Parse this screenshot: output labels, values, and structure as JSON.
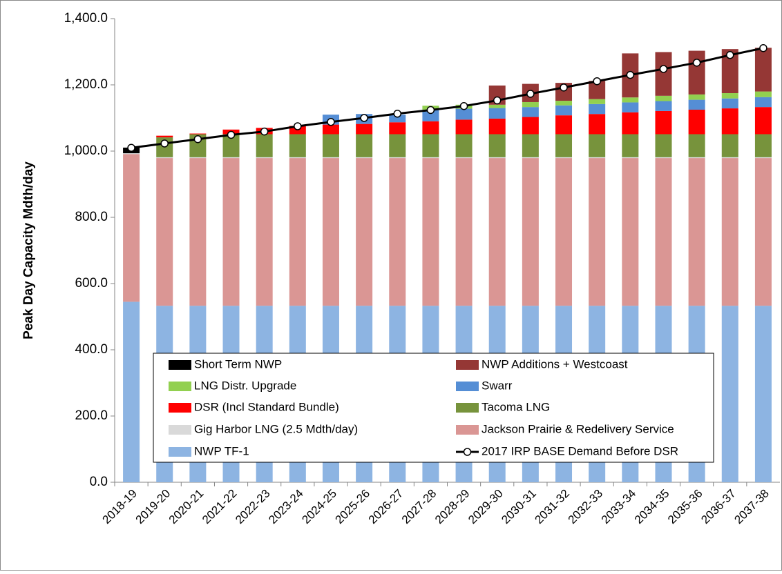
{
  "chart_data": {
    "type": "stacked_bar_line",
    "y_axis_label": "Peak Day Capacity Mdth/day",
    "categories": [
      "2018-19",
      "2019-20",
      "2020-21",
      "2021-22",
      "2022-23",
      "2023-24",
      "2024-25",
      "2025-26",
      "2026-27",
      "2027-28",
      "2028-29",
      "2029-30",
      "2030-31",
      "2031-32",
      "2032-33",
      "2033-34",
      "2034-35",
      "2035-36",
      "2036-37",
      "2037-38"
    ],
    "ylim": [
      0,
      1400
    ],
    "yticks": [
      {
        "value": 0,
        "label": "0.0"
      },
      {
        "value": 200,
        "label": "200.0"
      },
      {
        "value": 400,
        "label": "400.0"
      },
      {
        "value": 600,
        "label": "600.0"
      },
      {
        "value": 800,
        "label": "800.0"
      },
      {
        "value": 1000,
        "label": "1,000.0"
      },
      {
        "value": 1200,
        "label": "1,200.0"
      },
      {
        "value": 1400,
        "label": "1,400.0"
      }
    ],
    "series": [
      {
        "name": "NWP TF-1",
        "color": "#8db4e2",
        "values": [
          545,
          533,
          533,
          533,
          533,
          533,
          533,
          533,
          533,
          533,
          533,
          533,
          533,
          533,
          533,
          533,
          533,
          533,
          533,
          533
        ]
      },
      {
        "name": "Jackson Prairie & Redelivery Service",
        "color": "#da9694",
        "values": [
          446,
          446,
          446,
          446,
          446,
          446,
          446,
          446,
          446,
          446,
          446,
          446,
          446,
          446,
          446,
          446,
          446,
          446,
          446,
          446
        ]
      },
      {
        "name": "Gig Harbor LNG (2.5 Mdth/day)",
        "color": "#d9d9d9",
        "values": [
          2.5,
          2.5,
          2.5,
          2.5,
          2.5,
          2.5,
          2.5,
          2.5,
          2.5,
          2.5,
          2.5,
          2.5,
          2.5,
          2.5,
          2.5,
          2.5,
          2.5,
          2.5,
          2.5,
          2.5
        ]
      },
      {
        "name": "Tacoma LNG",
        "color": "#77933c",
        "values": [
          0,
          60,
          69.5,
          69.5,
          69.5,
          69.5,
          69.5,
          69.5,
          69.5,
          69.5,
          69.5,
          69.5,
          69.5,
          69.5,
          69.5,
          69.5,
          69.5,
          69.5,
          69.5,
          69.5
        ]
      },
      {
        "name": "DSR (Incl Standard Bundle)",
        "color": "#ff0000",
        "values": [
          0,
          5,
          2,
          14,
          19,
          25,
          29,
          31,
          36,
          39,
          44,
          47,
          52,
          57,
          61,
          66,
          70,
          74,
          78,
          82
        ]
      },
      {
        "name": "Swarr",
        "color": "#558ed5",
        "values": [
          0,
          0,
          0,
          0,
          0,
          0,
          30,
          30,
          23,
          35,
          33,
          32,
          30,
          30,
          30,
          30,
          30,
          30,
          30,
          30
        ]
      },
      {
        "name": "LNG Distr. Upgrade",
        "color": "#92d050",
        "values": [
          0,
          0,
          0,
          0,
          0,
          0,
          0,
          0,
          0,
          12,
          12,
          10,
          15,
          14,
          15,
          15,
          16,
          16,
          16,
          17
        ]
      },
      {
        "name": "NWP Additions + Westcoast",
        "color": "#953735",
        "values": [
          0,
          0,
          0,
          0,
          0,
          0,
          0,
          0,
          0,
          0,
          0,
          58,
          55,
          54,
          55,
          133,
          132,
          132,
          133,
          132
        ]
      },
      {
        "name": "Short Term NWP",
        "color": "#000000",
        "values": [
          17,
          0,
          0,
          0,
          0,
          0,
          0,
          0,
          0,
          0,
          0,
          0,
          0,
          0,
          0,
          0,
          0,
          0,
          0,
          0
        ]
      }
    ],
    "line": {
      "name": "2017 IRP BASE Demand Before DSR",
      "color": "#000000",
      "values": [
        1010,
        1023,
        1036,
        1049,
        1059,
        1075,
        1088,
        1100,
        1113,
        1124,
        1136,
        1153,
        1173,
        1192,
        1211,
        1230,
        1248,
        1267,
        1290,
        1311
      ]
    },
    "grid": false
  }
}
